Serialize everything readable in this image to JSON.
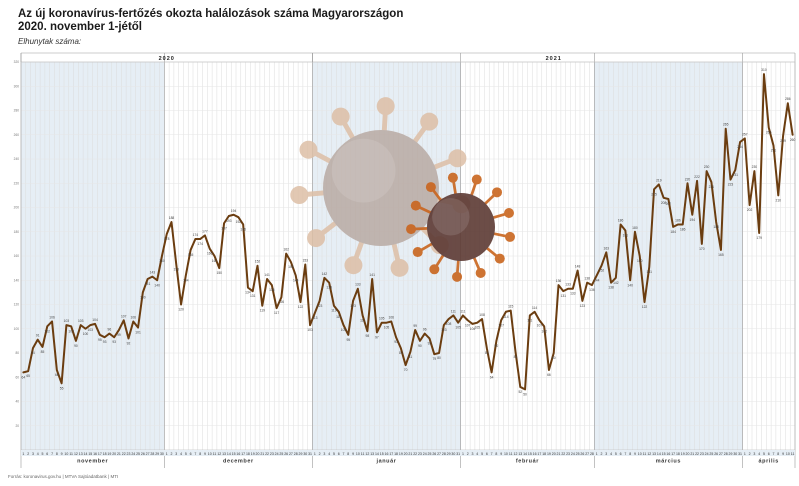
{
  "title": "Az új koronavírus-fertőzés okozta halálozások száma Magyarországon",
  "subtitle": "2020. november 1-jétől",
  "footer": "Forrás: koronavirus.gov.hu  |  MTVA Sajtóadatbank  |  MTI",
  "chart_data": {
    "type": "line",
    "title": "Az új koronavírus-fertőzés okozta halálozások száma Magyarországon",
    "subtitle": "2020. november 1-jétől",
    "ylabel": "Elhunytak száma:",
    "xlabel": "",
    "ylim": [
      0,
      320
    ],
    "yticks": [
      20,
      40,
      60,
      80,
      100,
      120,
      140,
      160,
      180,
      200,
      220,
      240,
      260,
      280,
      300,
      320
    ],
    "grid": true,
    "line_color": "#6b3d10",
    "years": [
      {
        "label": "2020",
        "start_day": 0,
        "end_day": 61
      },
      {
        "label": "2021",
        "start_day": 61,
        "end_day": 162
      }
    ],
    "months": [
      {
        "label": "november",
        "days": 30,
        "shaded": true
      },
      {
        "label": "december",
        "days": 31,
        "shaded": false
      },
      {
        "label": "január",
        "days": 31,
        "shaded": true
      },
      {
        "label": "február",
        "days": 28,
        "shaded": false
      },
      {
        "label": "március",
        "days": 31,
        "shaded": true
      },
      {
        "label": "április",
        "days": 11,
        "shaded": false
      }
    ],
    "values": [
      64,
      65,
      84,
      91,
      85,
      102,
      106,
      66,
      55,
      103,
      102,
      90,
      103,
      100,
      103,
      104,
      95,
      93,
      96,
      93,
      99,
      107,
      92,
      106,
      101,
      130,
      141,
      143,
      140,
      160,
      178,
      188,
      153,
      120,
      144,
      165,
      174,
      174,
      177,
      166,
      160,
      150,
      187,
      193,
      194,
      192,
      186,
      134,
      131,
      152,
      119,
      141,
      136,
      117,
      126,
      162,
      155,
      144,
      122,
      153,
      103,
      113,
      123,
      142,
      138,
      119,
      114,
      103,
      95,
      123,
      133,
      111,
      98,
      141,
      97,
      105,
      105,
      106,
      93,
      84,
      70,
      81,
      99,
      90,
      96,
      92,
      79,
      80,
      103,
      108,
      111,
      105,
      111,
      107,
      104,
      105,
      108,
      84,
      64,
      90,
      107,
      114,
      115,
      81,
      52,
      50,
      111,
      114,
      107,
      102,
      66,
      80,
      136,
      131,
      133,
      133,
      148,
      123,
      138,
      136,
      144,
      152,
      163,
      138,
      142,
      186,
      181,
      140,
      180,
      160,
      122,
      151,
      215,
      219,
      208,
      207,
      184,
      186,
      186,
      220,
      194,
      222,
      170,
      230,
      221,
      188,
      165,
      265,
      223,
      231,
      254,
      257,
      202,
      230,
      179,
      310,
      266,
      251,
      210,
      259,
      286,
      260
    ]
  }
}
